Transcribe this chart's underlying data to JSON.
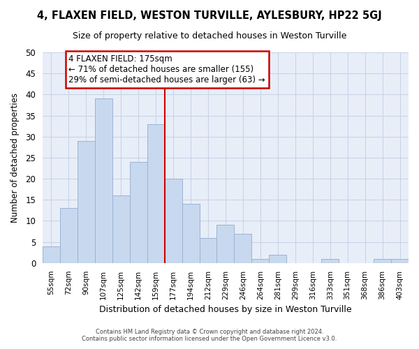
{
  "title": "4, FLAXEN FIELD, WESTON TURVILLE, AYLESBURY, HP22 5GJ",
  "subtitle": "Size of property relative to detached houses in Weston Turville",
  "xlabel": "Distribution of detached houses by size in Weston Turville",
  "ylabel": "Number of detached properties",
  "bar_color": "#c8d8ee",
  "bar_edge_color": "#9ab4d4",
  "categories": [
    "55sqm",
    "72sqm",
    "90sqm",
    "107sqm",
    "125sqm",
    "142sqm",
    "159sqm",
    "177sqm",
    "194sqm",
    "212sqm",
    "229sqm",
    "246sqm",
    "264sqm",
    "281sqm",
    "299sqm",
    "316sqm",
    "333sqm",
    "351sqm",
    "368sqm",
    "386sqm",
    "403sqm"
  ],
  "values": [
    4,
    13,
    29,
    39,
    16,
    24,
    33,
    20,
    14,
    6,
    9,
    7,
    1,
    2,
    0,
    0,
    1,
    0,
    0,
    1,
    1
  ],
  "ylim": [
    0,
    50
  ],
  "yticks": [
    0,
    5,
    10,
    15,
    20,
    25,
    30,
    35,
    40,
    45,
    50
  ],
  "vline_x_idx": 7,
  "vline_color": "#cc0000",
  "annotation_text": "4 FLAXEN FIELD: 175sqm\n← 71% of detached houses are smaller (155)\n29% of semi-detached houses are larger (63) →",
  "footer_line1": "Contains HM Land Registry data © Crown copyright and database right 2024.",
  "footer_line2": "Contains public sector information licensed under the Open Government Licence v3.0.",
  "bg_color": "#ffffff",
  "plot_bg_color": "#e8eef8",
  "grid_color": "#c8d4e8"
}
